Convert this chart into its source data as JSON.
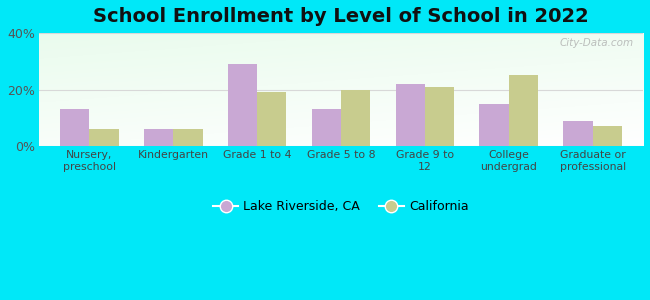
{
  "title": "School Enrollment by Level of School in 2022",
  "categories": [
    "Nursery,\npreschool",
    "Kindergarten",
    "Grade 1 to 4",
    "Grade 5 to 8",
    "Grade 9 to\n12",
    "College\nundergrad",
    "Graduate or\nprofessional"
  ],
  "lake_riverside": [
    13,
    6,
    29,
    13,
    22,
    15,
    9
  ],
  "california": [
    6,
    6,
    19,
    20,
    21,
    25,
    7
  ],
  "lake_color": "#c9a8d4",
  "california_color": "#c8cc8e",
  "background_outer": "#00e8f8",
  "ylim": [
    0,
    40
  ],
  "yticks": [
    0,
    20,
    40
  ],
  "ytick_labels": [
    "0%",
    "20%",
    "40%"
  ],
  "legend_lake": "Lake Riverside, CA",
  "legend_ca": "California",
  "title_fontsize": 14,
  "bar_width": 0.35,
  "watermark": "City-Data.com"
}
